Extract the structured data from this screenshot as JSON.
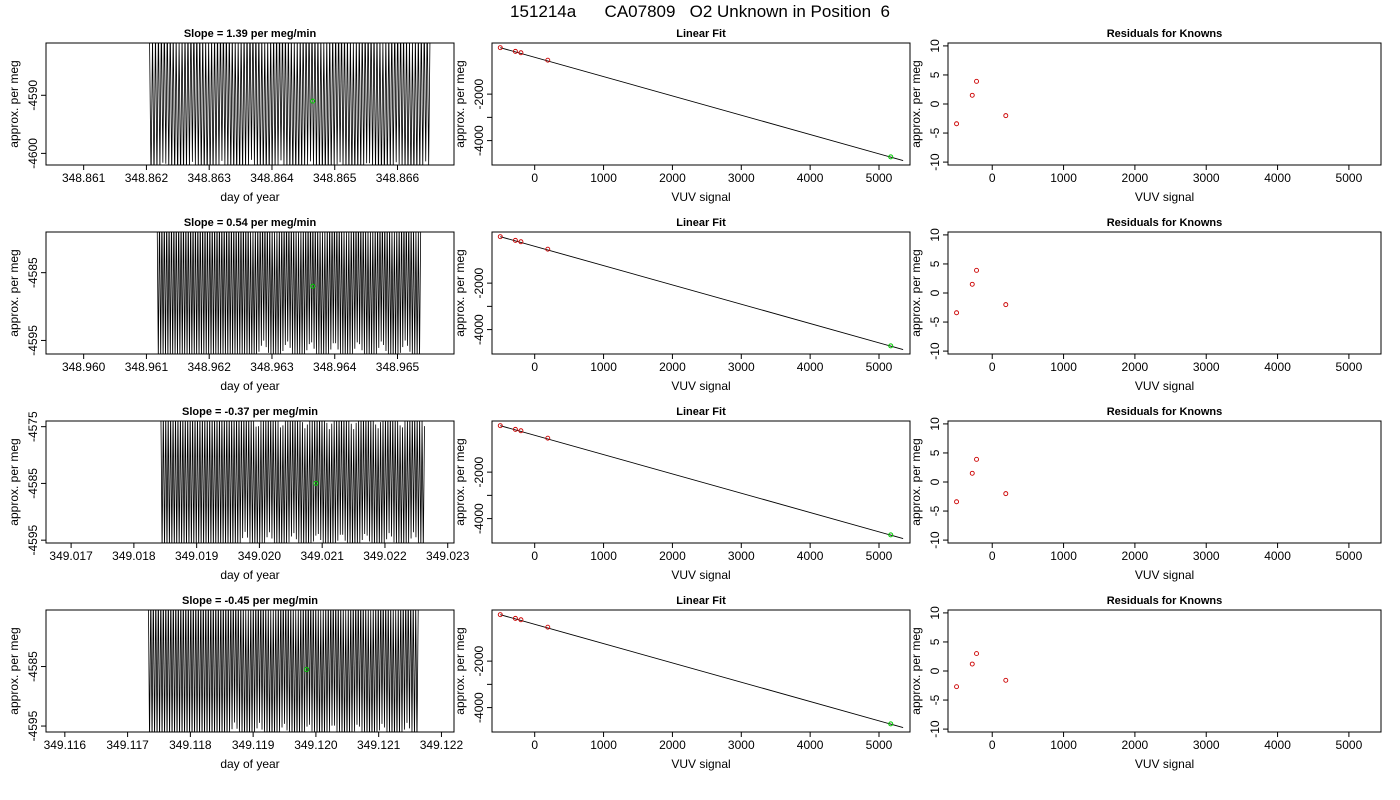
{
  "figure": {
    "title": "151214a      CA07809   O2 Unknown in Position  6"
  },
  "colors": {
    "trace": "#000000",
    "marker_green": "#00cc00",
    "marker_red": "#cc0000",
    "axis": "#000000"
  },
  "chart_data": [
    {
      "type": "line",
      "row": 0,
      "col": 0,
      "title": "Slope =  1.39  per meg/min",
      "xlabel": "day of year",
      "ylabel": "approx. per meg",
      "xlim": [
        348.8604,
        348.8669
      ],
      "ylim": [
        -4602,
        -4581
      ],
      "xticks": [
        348.861,
        348.862,
        348.863,
        348.864,
        348.865,
        348.866
      ],
      "xtick_labels": [
        "348.861",
        "348.862",
        "348.863",
        "348.864",
        "348.865",
        "348.866"
      ],
      "yticks": [
        -4600,
        -4590
      ],
      "ytick_labels": [
        "-4600",
        "-4590"
      ],
      "trace_range": [
        348.86205,
        348.86652
      ],
      "trace_band": [
        -4605,
        -4577
      ],
      "trace_cycles": 95,
      "trace_start_frac": 0.0,
      "marker": {
        "x": 348.86465,
        "y": -4591
      }
    },
    {
      "type": "scatter",
      "row": 0,
      "col": 1,
      "title": "Linear Fit",
      "xlabel": "VUV signal",
      "ylabel": "approx. per meg",
      "xlim": [
        -620,
        5450
      ],
      "ylim": [
        -5050,
        200
      ],
      "xticks": [
        0,
        1000,
        2000,
        3000,
        4000,
        5000
      ],
      "xtick_labels": [
        "0",
        "1000",
        "2000",
        "3000",
        "4000",
        "5000"
      ],
      "yticks": [
        -4000,
        -3000,
        -2000
      ],
      "ytick_labels": [
        "-4000",
        "",
        "-2000"
      ],
      "fit_line": [
        [
          -500,
          0
        ],
        [
          5350,
          -4860
        ]
      ],
      "points": [
        {
          "x": -500,
          "y": 0
        },
        {
          "x": -280,
          "y": -160
        },
        {
          "x": -200,
          "y": -220
        },
        {
          "x": 190,
          "y": -540
        }
      ],
      "marker": {
        "x": 5170,
        "y": -4700
      }
    },
    {
      "type": "scatter",
      "row": 0,
      "col": 2,
      "title": "Residuals for Knowns",
      "xlabel": "VUV signal",
      "ylabel": "approx. per meg",
      "xlim": [
        -620,
        5450
      ],
      "ylim": [
        -10.5,
        10.5
      ],
      "xticks": [
        0,
        1000,
        2000,
        3000,
        4000,
        5000
      ],
      "xtick_labels": [
        "0",
        "1000",
        "2000",
        "3000",
        "4000",
        "5000"
      ],
      "yticks": [
        -10,
        -5,
        0,
        5,
        10
      ],
      "ytick_labels": [
        "-10",
        "-5",
        "0",
        "5",
        "10"
      ],
      "points": [
        {
          "x": -500,
          "y": -3.4
        },
        {
          "x": -280,
          "y": 1.5
        },
        {
          "x": -220,
          "y": 3.9
        },
        {
          "x": 190,
          "y": -2.0
        }
      ]
    },
    {
      "type": "line",
      "row": 1,
      "col": 0,
      "title": "Slope =  0.54  per meg/min",
      "xlabel": "day of year",
      "ylabel": "approx. per meg",
      "xlim": [
        348.9594,
        348.9659
      ],
      "ylim": [
        -4597,
        -4579
      ],
      "xticks": [
        348.96,
        348.961,
        348.962,
        348.963,
        348.964,
        348.965
      ],
      "xtick_labels": [
        "348.960",
        "348.961",
        "348.962",
        "348.963",
        "348.964",
        "348.965"
      ],
      "yticks": [
        -4595,
        -4585
      ],
      "ytick_labels": [
        "-4595",
        "-4585"
      ],
      "trace_range": [
        348.96117,
        348.96537
      ],
      "trace_band": [
        -4598,
        -4576
      ],
      "trace_cycles": 110,
      "trace_start_frac": 0.35,
      "marker": {
        "x": 348.96365,
        "y": -4587
      }
    },
    {
      "type": "scatter",
      "row": 1,
      "col": 1,
      "title": "Linear Fit",
      "xlabel": "VUV signal",
      "ylabel": "approx. per meg",
      "xlim": [
        -620,
        5450
      ],
      "ylim": [
        -5050,
        200
      ],
      "xticks": [
        0,
        1000,
        2000,
        3000,
        4000,
        5000
      ],
      "xtick_labels": [
        "0",
        "1000",
        "2000",
        "3000",
        "4000",
        "5000"
      ],
      "yticks": [
        -4000,
        -3000,
        -2000
      ],
      "ytick_labels": [
        "-4000",
        "",
        "-2000"
      ],
      "fit_line": [
        [
          -500,
          0
        ],
        [
          5350,
          -4860
        ]
      ],
      "points": [
        {
          "x": -500,
          "y": 0
        },
        {
          "x": -280,
          "y": -160
        },
        {
          "x": -200,
          "y": -220
        },
        {
          "x": 190,
          "y": -540
        }
      ],
      "marker": {
        "x": 5170,
        "y": -4700
      }
    },
    {
      "type": "scatter",
      "row": 1,
      "col": 2,
      "title": "Residuals for Knowns",
      "xlabel": "VUV signal",
      "ylabel": "approx. per meg",
      "xlim": [
        -620,
        5450
      ],
      "ylim": [
        -10.5,
        10.5
      ],
      "xticks": [
        0,
        1000,
        2000,
        3000,
        4000,
        5000
      ],
      "xtick_labels": [
        "0",
        "1000",
        "2000",
        "3000",
        "4000",
        "5000"
      ],
      "yticks": [
        -10,
        -5,
        0,
        5,
        10
      ],
      "ytick_labels": [
        "-10",
        "-5",
        "0",
        "5",
        "10"
      ],
      "points": [
        {
          "x": -500,
          "y": -3.4
        },
        {
          "x": -280,
          "y": 1.5
        },
        {
          "x": -220,
          "y": 3.9
        },
        {
          "x": 190,
          "y": -2.0
        }
      ]
    },
    {
      "type": "line",
      "row": 2,
      "col": 0,
      "title": "Slope =  -0.37  per meg/min",
      "xlabel": "day of year",
      "ylabel": "approx. per meg",
      "xlim": [
        349.0166,
        349.0231
      ],
      "ylim": [
        -4595.5,
        -4574
      ],
      "xticks": [
        349.017,
        349.018,
        349.019,
        349.02,
        349.021,
        349.022,
        349.023
      ],
      "xtick_labels": [
        "349.017",
        "349.018",
        "349.019",
        "349.020",
        "349.021",
        "349.022",
        "349.023"
      ],
      "yticks": [
        -4595,
        -4585,
        -4575
      ],
      "ytick_labels": [
        "-4595",
        "-4585",
        "-4575"
      ],
      "trace_range": [
        349.01843,
        349.02263
      ],
      "trace_band": [
        -4597,
        -4572
      ],
      "trace_cycles": 108,
      "trace_start_frac": 0.3,
      "marker": {
        "x": 349.0209,
        "y": -4585
      }
    },
    {
      "type": "scatter",
      "row": 2,
      "col": 1,
      "title": "Linear Fit",
      "xlabel": "VUV signal",
      "ylabel": "approx. per meg",
      "xlim": [
        -620,
        5450
      ],
      "ylim": [
        -5050,
        200
      ],
      "xticks": [
        0,
        1000,
        2000,
        3000,
        4000,
        5000
      ],
      "xtick_labels": [
        "0",
        "1000",
        "2000",
        "3000",
        "4000",
        "5000"
      ],
      "yticks": [
        -4000,
        -3000,
        -2000
      ],
      "ytick_labels": [
        "-4000",
        "",
        "-2000"
      ],
      "fit_line": [
        [
          -500,
          0
        ],
        [
          5350,
          -4860
        ]
      ],
      "points": [
        {
          "x": -500,
          "y": 0
        },
        {
          "x": -280,
          "y": -160
        },
        {
          "x": -200,
          "y": -220
        },
        {
          "x": 190,
          "y": -540
        }
      ],
      "marker": {
        "x": 5170,
        "y": -4700
      }
    },
    {
      "type": "scatter",
      "row": 2,
      "col": 2,
      "title": "Residuals for Knowns",
      "xlabel": "VUV signal",
      "ylabel": "approx. per meg",
      "xlim": [
        -620,
        5450
      ],
      "ylim": [
        -10.5,
        10.5
      ],
      "xticks": [
        0,
        1000,
        2000,
        3000,
        4000,
        5000
      ],
      "xtick_labels": [
        "0",
        "1000",
        "2000",
        "3000",
        "4000",
        "5000"
      ],
      "yticks": [
        -10,
        -5,
        0,
        5,
        10
      ],
      "ytick_labels": [
        "-10",
        "-5",
        "0",
        "5",
        "10"
      ],
      "points": [
        {
          "x": -500,
          "y": -3.4
        },
        {
          "x": -280,
          "y": 1.5
        },
        {
          "x": -220,
          "y": 3.9
        },
        {
          "x": 190,
          "y": -2.0
        }
      ]
    },
    {
      "type": "line",
      "row": 3,
      "col": 0,
      "title": "Slope =  -0.45  per meg/min",
      "xlabel": "day of year",
      "ylabel": "approx. per meg",
      "xlim": [
        349.1157,
        349.1222
      ],
      "ylim": [
        -4596,
        -4575.5
      ],
      "xticks": [
        349.116,
        349.117,
        349.118,
        349.119,
        349.12,
        349.121,
        349.122
      ],
      "xtick_labels": [
        "349.116",
        "349.117",
        "349.118",
        "349.119",
        "349.120",
        "349.121",
        "349.122"
      ],
      "yticks": [
        -4595,
        -4585
      ],
      "ytick_labels": [
        "-4595",
        "-4585"
      ],
      "trace_range": [
        349.11733,
        349.12163
      ],
      "trace_band": [
        -4598,
        -4572
      ],
      "trace_cycles": 108,
      "trace_start_frac": 0.3,
      "marker": {
        "x": 349.11985,
        "y": -4585.5
      }
    },
    {
      "type": "scatter",
      "row": 3,
      "col": 1,
      "title": "Linear Fit",
      "xlabel": "VUV signal",
      "ylabel": "approx. per meg",
      "xlim": [
        -620,
        5450
      ],
      "ylim": [
        -5050,
        200
      ],
      "xticks": [
        0,
        1000,
        2000,
        3000,
        4000,
        5000
      ],
      "xtick_labels": [
        "0",
        "1000",
        "2000",
        "3000",
        "4000",
        "5000"
      ],
      "yticks": [
        -4000,
        -3000,
        -2000
      ],
      "ytick_labels": [
        "-4000",
        "",
        "-2000"
      ],
      "fit_line": [
        [
          -500,
          0
        ],
        [
          5350,
          -4860
        ]
      ],
      "points": [
        {
          "x": -500,
          "y": 0
        },
        {
          "x": -280,
          "y": -160
        },
        {
          "x": -200,
          "y": -220
        },
        {
          "x": 190,
          "y": -540
        }
      ],
      "marker": {
        "x": 5170,
        "y": -4700
      }
    },
    {
      "type": "scatter",
      "row": 3,
      "col": 2,
      "title": "Residuals for Knowns",
      "xlabel": "VUV signal",
      "ylabel": "approx. per meg",
      "xlim": [
        -620,
        5450
      ],
      "ylim": [
        -10.5,
        10.5
      ],
      "xticks": [
        0,
        1000,
        2000,
        3000,
        4000,
        5000
      ],
      "xtick_labels": [
        "0",
        "1000",
        "2000",
        "3000",
        "4000",
        "5000"
      ],
      "yticks": [
        -10,
        -5,
        0,
        5,
        10
      ],
      "ytick_labels": [
        "-10",
        "-5",
        "0",
        "5",
        "10"
      ],
      "points": [
        {
          "x": -500,
          "y": -2.7
        },
        {
          "x": -280,
          "y": 1.2
        },
        {
          "x": -220,
          "y": 3.0
        },
        {
          "x": 190,
          "y": -1.6
        }
      ]
    }
  ]
}
